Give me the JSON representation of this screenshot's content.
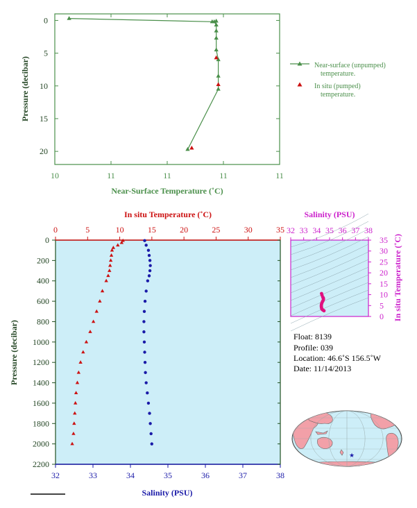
{
  "chart_data": [
    {
      "type": "line",
      "xlabel": "Near-Surface Temperature (˚C)",
      "ylabel": "Pressure (decibar)",
      "xticks": [
        "10",
        "11",
        "11",
        "11",
        "11"
      ],
      "ylim": [
        22,
        -1
      ],
      "yticks": [
        0,
        5,
        10,
        15,
        20
      ],
      "legend_position": "right",
      "series": [
        {
          "name": "Near-surface (unpumped)\ntemperature.",
          "marker": "triangle",
          "color": "#4a8f4a",
          "x": [
            10.07,
            10.77,
            10.79,
            10.78,
            10.79,
            10.79,
            10.79,
            10.79,
            10.8,
            10.8,
            10.8,
            10.65
          ],
          "y": [
            -0.3,
            0.2,
            0.1,
            0.2,
            0.7,
            1.6,
            2.7,
            4.5,
            6.0,
            8.5,
            10.5,
            19.7
          ]
        },
        {
          "name": "In situ (pumped)\ntemperature.",
          "marker": "triangle",
          "color": "#cc1111",
          "x": [
            10.79,
            10.8,
            10.67
          ],
          "y": [
            5.7,
            9.8,
            19.5
          ]
        }
      ]
    },
    {
      "type": "scatter",
      "ylabel": "Pressure (decibar)",
      "x_bottom_label": "Salinity (PSU)",
      "x_top_label": "In situ Temperature (˚C)",
      "temperature_range": [
        0,
        35
      ],
      "temperature_ticks": [
        0,
        5,
        10,
        15,
        20,
        25,
        30,
        35
      ],
      "salinity_range": [
        32,
        38
      ],
      "salinity_ticks": [
        32,
        33,
        34,
        35,
        36,
        37,
        38
      ],
      "pressure_range": [
        0,
        2200
      ],
      "pressure_ticks": [
        0,
        200,
        400,
        600,
        800,
        1000,
        1200,
        1400,
        1600,
        1800,
        2000,
        2200
      ],
      "temperature": {
        "color": "#cc1111",
        "pressure": [
          5,
          25,
          50,
          75,
          100,
          150,
          200,
          250,
          300,
          350,
          400,
          500,
          600,
          700,
          800,
          900,
          1000,
          1100,
          1200,
          1300,
          1400,
          1500,
          1600,
          1700,
          1800,
          1900,
          2000
        ],
        "values": [
          10.5,
          10.3,
          9.7,
          9.0,
          8.8,
          8.7,
          8.6,
          8.5,
          8.4,
          8.2,
          7.9,
          7.3,
          6.9,
          6.4,
          5.9,
          5.4,
          4.8,
          4.3,
          3.9,
          3.6,
          3.4,
          3.2,
          3.1,
          3.0,
          2.9,
          2.8,
          2.6
        ]
      },
      "salinity": {
        "color": "#1a1aa8",
        "pressure": [
          5,
          50,
          100,
          150,
          200,
          250,
          300,
          350,
          400,
          500,
          600,
          700,
          800,
          900,
          1000,
          1100,
          1200,
          1300,
          1400,
          1500,
          1600,
          1700,
          1800,
          1900,
          2000
        ],
        "values": [
          34.38,
          34.42,
          34.48,
          34.5,
          34.52,
          34.53,
          34.52,
          34.5,
          34.46,
          34.42,
          34.39,
          34.37,
          34.36,
          34.36,
          34.37,
          34.38,
          34.39,
          34.4,
          34.42,
          34.45,
          34.48,
          34.51,
          34.53,
          34.55,
          34.57
        ]
      }
    },
    {
      "type": "scatter",
      "title": "Salinity (PSU)",
      "ylabel": "In situ Temperature (˚C)",
      "xlim": [
        32,
        38
      ],
      "xticks": [
        32,
        33,
        34,
        35,
        36,
        37,
        38
      ],
      "ylim": [
        0,
        35
      ],
      "yticks": [
        0,
        5,
        10,
        15,
        20,
        25,
        30,
        35
      ],
      "color": "#e0117f",
      "salinity": [
        34.38,
        34.42,
        34.48,
        34.5,
        34.52,
        34.53,
        34.5,
        34.46,
        34.42,
        34.39,
        34.37,
        34.36,
        34.37,
        34.38,
        34.4,
        34.45,
        34.5,
        34.57
      ],
      "temperature": [
        10.5,
        9.7,
        8.8,
        8.6,
        8.4,
        7.9,
        7.3,
        6.9,
        6.4,
        5.9,
        5.4,
        4.8,
        4.3,
        3.9,
        3.4,
        3.1,
        2.9,
        2.6
      ]
    }
  ],
  "info": {
    "float": "Float:  8139",
    "profile": "Profile:  039",
    "location": "Location:  46.6˚S  156.5˚W",
    "date": "Date:  11/14/2013"
  },
  "colors": {
    "green": "#4a8f4a",
    "red": "#cc1111",
    "blue": "#1a1aa8",
    "magenta": "#cc22cc",
    "panel_bg": "#cdeef8",
    "land": "#f2a0a8"
  }
}
